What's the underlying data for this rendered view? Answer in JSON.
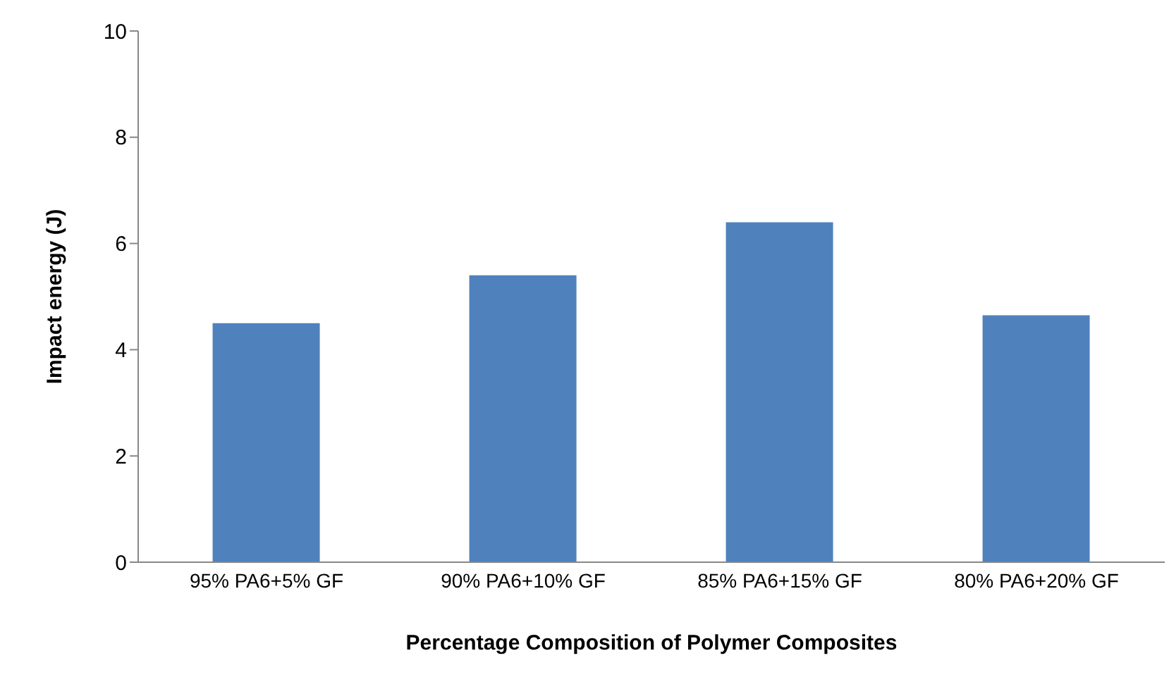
{
  "chart_data": {
    "type": "bar",
    "xlabel": "Percentage Composition  of Polymer Composites",
    "ylabel": "Impact energy (J)",
    "categories": [
      "95% PA6+5% GF",
      "90% PA6+10% GF",
      "85% PA6+15% GF",
      "80% PA6+20% GF"
    ],
    "values": [
      4.5,
      5.4,
      6.4,
      4.65
    ],
    "color": "#4f81bd",
    "ylim": [
      0,
      10
    ],
    "yticks": [
      0,
      2,
      4,
      6,
      8,
      10
    ],
    "grid": false
  }
}
